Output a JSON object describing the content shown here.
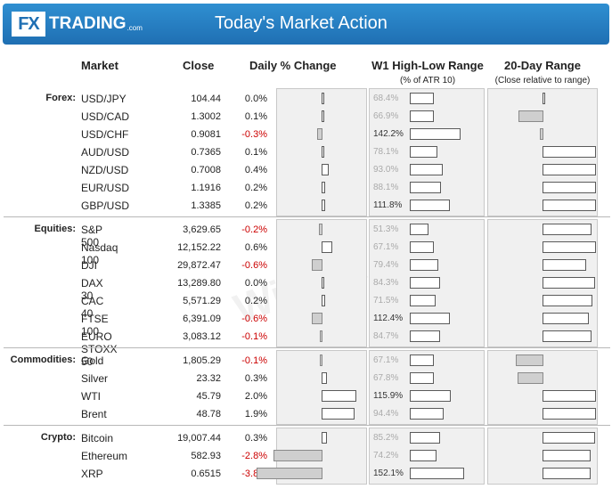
{
  "header": {
    "logo_fx": "FX",
    "logo_trading": "TRADING",
    "logo_com": ".com",
    "title": "Today's Market Action"
  },
  "columns": {
    "market": "Market",
    "close": "Close",
    "daily_change": "Daily % Change",
    "w1_range": "W1 High-Low Range",
    "w1_range_sub": "(% of ATR 10)",
    "day20_range": "20-Day Range",
    "day20_range_sub": "(Close relative to range)"
  },
  "groups": [
    {
      "category": "Forex:",
      "rows": [
        {
          "market": "USD/JPY",
          "close": "104.44",
          "change": "0.0%",
          "chg": 0.0,
          "atr": "68.4%",
          "atr_v": 68.4,
          "r20": 0.05
        },
        {
          "market": "USD/CAD",
          "close": "1.3002",
          "change": "0.1%",
          "chg": 0.1,
          "atr": "66.9%",
          "atr_v": 66.9,
          "r20": -0.47
        },
        {
          "market": "USD/CHF",
          "close": "0.9081",
          "change": "-0.3%",
          "chg": -0.3,
          "atr": "142.2%",
          "atr_v": 142.2,
          "r20": -0.06
        },
        {
          "market": "AUD/USD",
          "close": "0.7365",
          "change": "0.1%",
          "chg": 0.1,
          "atr": "78.1%",
          "atr_v": 78.1,
          "r20": 1.0
        },
        {
          "market": "NZD/USD",
          "close": "0.7008",
          "change": "0.4%",
          "chg": 0.4,
          "atr": "93.0%",
          "atr_v": 93.0,
          "r20": 1.0
        },
        {
          "market": "EUR/USD",
          "close": "1.1916",
          "change": "0.2%",
          "chg": 0.2,
          "atr": "88.1%",
          "atr_v": 88.1,
          "r20": 1.0
        },
        {
          "market": "GBP/USD",
          "close": "1.3385",
          "change": "0.2%",
          "chg": 0.2,
          "atr": "111.8%",
          "atr_v": 111.8,
          "r20": 1.0
        }
      ]
    },
    {
      "category": "Equities:",
      "rows": [
        {
          "market": "S&P 500",
          "close": "3,629.65",
          "change": "-0.2%",
          "chg": -0.2,
          "atr": "51.3%",
          "atr_v": 51.3,
          "r20": 0.92
        },
        {
          "market": "Nasdaq 100",
          "close": "12,152.22",
          "change": "0.6%",
          "chg": 0.6,
          "atr": "67.1%",
          "atr_v": 67.1,
          "r20": 1.0
        },
        {
          "market": "DJI",
          "close": "29,872.47",
          "change": "-0.6%",
          "chg": -0.6,
          "atr": "79.4%",
          "atr_v": 79.4,
          "r20": 0.82
        },
        {
          "market": "DAX 30",
          "close": "13,289.80",
          "change": "0.0%",
          "chg": 0.0,
          "atr": "84.3%",
          "atr_v": 84.3,
          "r20": 0.98
        },
        {
          "market": "CAC 40",
          "close": "5,571.29",
          "change": "0.2%",
          "chg": 0.2,
          "atr": "71.5%",
          "atr_v": 71.5,
          "r20": 0.93
        },
        {
          "market": "FTSE 100",
          "close": "6,391.09",
          "change": "-0.6%",
          "chg": -0.6,
          "atr": "112.4%",
          "atr_v": 112.4,
          "r20": 0.86
        },
        {
          "market": "EURO STOXX 50",
          "close": "3,083.12",
          "change": "-0.1%",
          "chg": -0.1,
          "atr": "84.7%",
          "atr_v": 84.7,
          "r20": 0.92
        }
      ]
    },
    {
      "category": "Commodities:",
      "rows": [
        {
          "market": "Gold",
          "close": "1,805.29",
          "change": "-0.1%",
          "chg": -0.1,
          "atr": "67.1%",
          "atr_v": 67.1,
          "r20": -0.52
        },
        {
          "market": "Silver",
          "close": "23.32",
          "change": "0.3%",
          "chg": 0.3,
          "atr": "67.8%",
          "atr_v": 67.8,
          "r20": -0.49
        },
        {
          "market": "WTI",
          "close": "45.79",
          "change": "2.0%",
          "chg": 2.0,
          "atr": "115.9%",
          "atr_v": 115.9,
          "r20": 1.0
        },
        {
          "market": "Brent",
          "close": "48.78",
          "change": "1.9%",
          "chg": 1.9,
          "atr": "94.4%",
          "atr_v": 94.4,
          "r20": 1.0
        }
      ]
    },
    {
      "category": "Crypto:",
      "rows": [
        {
          "market": "Bitcoin",
          "close": "19,007.44",
          "change": "0.3%",
          "chg": 0.3,
          "atr": "85.2%",
          "atr_v": 85.2,
          "r20": 0.98
        },
        {
          "market": "Ethereum",
          "close": "582.93",
          "change": "-2.8%",
          "chg": -2.8,
          "atr": "74.2%",
          "atr_v": 74.2,
          "r20": 0.9
        },
        {
          "market": "XRP",
          "close": "0.6515",
          "change": "-3.8%",
          "chg": -3.8,
          "atr": "152.1%",
          "atr_v": 152.1,
          "r20": 0.9
        }
      ]
    }
  ],
  "colors": {
    "header": "#1f6fb3",
    "negative": "#cc0000",
    "panel": "#f0f0f0"
  }
}
